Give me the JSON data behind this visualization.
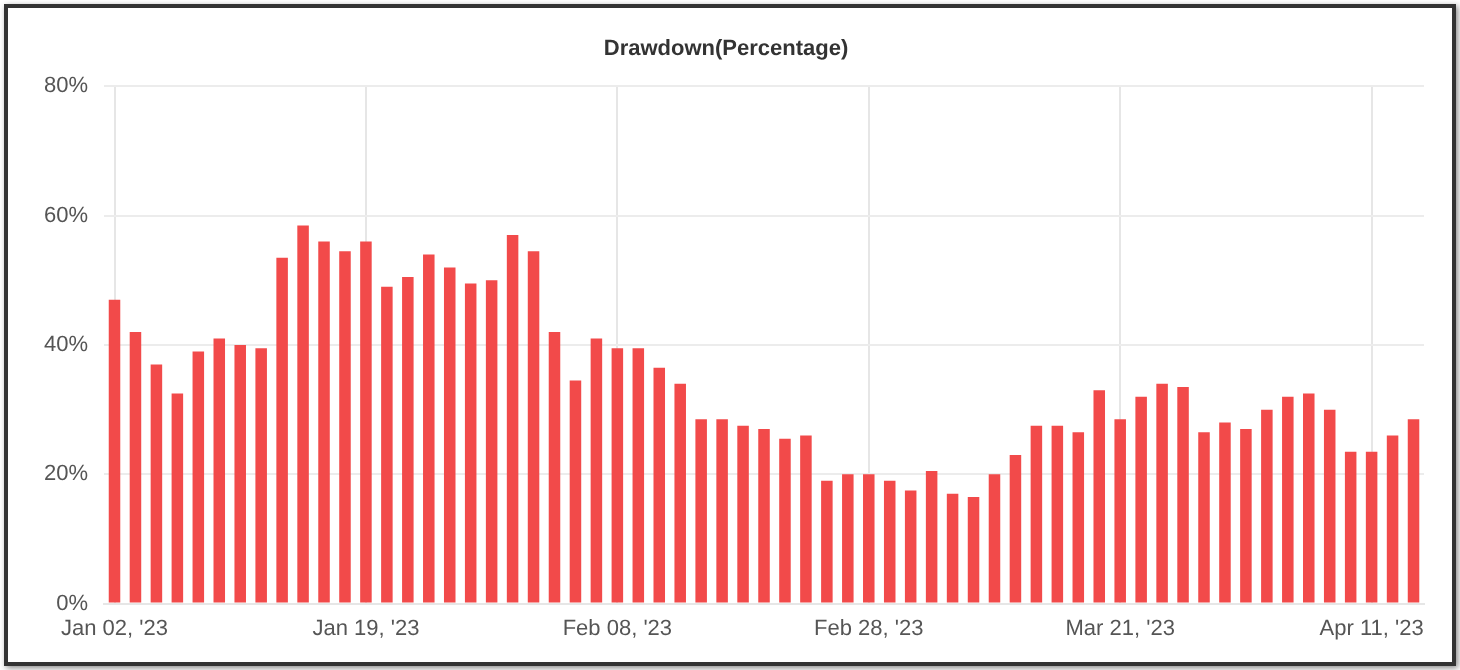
{
  "chart_data": {
    "type": "bar",
    "title": "Drawdown(Percentage)",
    "categories": [
      "Jan 02, '23",
      null,
      null,
      null,
      null,
      null,
      null,
      null,
      null,
      null,
      null,
      null,
      "Jan 19, '23",
      null,
      null,
      null,
      null,
      null,
      null,
      null,
      null,
      null,
      null,
      null,
      "Feb 08, '23",
      null,
      null,
      null,
      null,
      null,
      null,
      null,
      null,
      null,
      null,
      null,
      "Feb 28, '23",
      null,
      null,
      null,
      null,
      null,
      null,
      null,
      null,
      null,
      null,
      null,
      "Mar 21, '23",
      null,
      null,
      null,
      null,
      null,
      null,
      null,
      null,
      null,
      null,
      null,
      "Apr 11, '23",
      null,
      null
    ],
    "values": [
      47,
      42,
      37,
      32.5,
      39,
      41,
      40,
      39.5,
      53.5,
      58.5,
      56,
      54.5,
      56,
      49,
      50.5,
      54,
      52,
      49.5,
      50,
      57,
      54.5,
      42,
      34.5,
      41,
      39.5,
      39.5,
      36.5,
      34,
      28.5,
      28.5,
      27.5,
      27,
      25.5,
      26,
      19,
      20,
      20,
      19,
      17.5,
      20.5,
      17,
      16.5,
      20,
      23,
      27.5,
      27.5,
      26.5,
      33,
      28.5,
      32,
      34,
      33.5,
      26.5,
      28,
      27,
      30,
      32,
      32.5,
      30,
      23.5,
      23.5,
      26,
      28.5
    ],
    "color": "#f24a4a",
    "ylim": [
      0,
      80
    ],
    "yticks": [
      {
        "value": 0,
        "label": "0%"
      },
      {
        "value": 20,
        "label": "20%"
      },
      {
        "value": 40,
        "label": "40%"
      },
      {
        "value": 60,
        "label": "60%"
      },
      {
        "value": 80,
        "label": "80%"
      }
    ],
    "grid": true,
    "legend": false
  }
}
